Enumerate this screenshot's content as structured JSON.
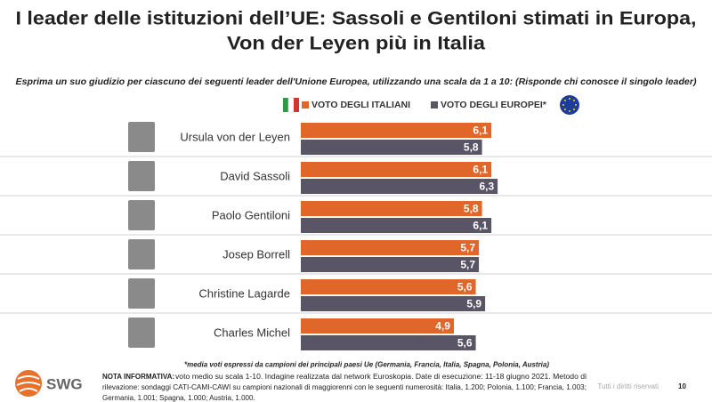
{
  "chart_data": {
    "type": "bar",
    "orientation": "horizontal",
    "title": [
      "I leader delle istituzioni dell’UE: Sassoli e Gentiloni stimati in Europa,",
      "Von der Leyen più in Italia"
    ],
    "subtitle": "Esprima un suo giudizio per ciascuno dei seguenti leader dell'Unione Europea, utilizzando una scala da 1 a 10: (Risponde chi conosce il singolo leader)",
    "categories": [
      "Ursula von der Leyen",
      "David Sassoli",
      "Paolo Gentiloni",
      "Josep Borrell",
      "Christine Lagarde",
      "Charles Michel"
    ],
    "series": [
      {
        "name": "VOTO DEGLI ITALIANI",
        "color": "#e0662a",
        "values": [
          6.1,
          6.1,
          5.8,
          5.7,
          5.6,
          4.9
        ],
        "value_labels": [
          "6,1",
          "6,1",
          "5,8",
          "5,7",
          "5,6",
          "4,9"
        ]
      },
      {
        "name": "VOTO DEGLI EUROPEI*",
        "color": "#5a5467",
        "values": [
          5.8,
          6.3,
          6.1,
          5.7,
          5.9,
          5.6
        ],
        "value_labels": [
          "5,8",
          "6,3",
          "6,1",
          "5,7",
          "5,9",
          "5,6"
        ]
      }
    ]
  },
  "footnote": "*media voti espressi da campioni dei principali paesi Ue (Germania, Francia, Italia, Spagna, Polonia, Austria)",
  "note": {
    "label": "NOTA INFORMATIVA:",
    "lines": [
      "voto medio su scala 1-10. Indagine realizzata dal network Euroskopia. Date di esecuzione: 11-18 giugno 2021. Metodo di",
      "rilevazione: sondaggi CATI-CAMI-CAWI su campioni nazionali di maggiorenni con le seguenti numerosità: Italia, 1.200; Polonia, 1.100; Francia, 1.003;",
      "Germania, 1.001; Spagna, 1.000; Austria, 1.000."
    ]
  },
  "logo": "SWG",
  "rights": "Tutti i diritti riservati",
  "page_number": "10"
}
